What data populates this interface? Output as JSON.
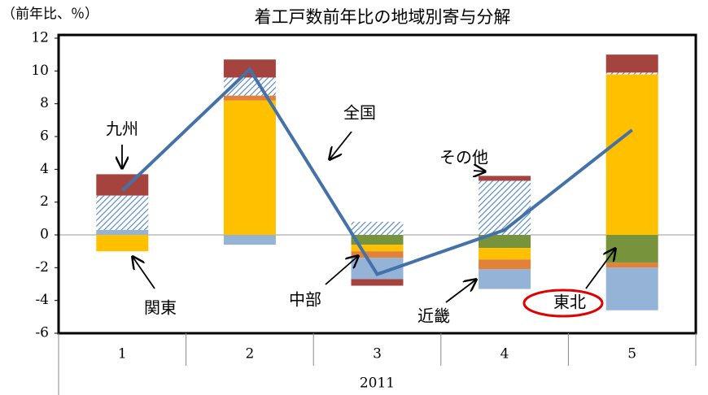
{
  "chart_data": {
    "type": "stacked_bar_line",
    "title": "着工戸数前年比の地域別寄与分解",
    "y_axis_label": "（前年比、％）",
    "categories": [
      "1",
      "2",
      "3",
      "4",
      "5"
    ],
    "group_label": "2011",
    "ylim": [
      -6,
      12
    ],
    "yticks": [
      -6,
      -4,
      -2,
      0,
      2,
      4,
      6,
      8,
      10,
      12
    ],
    "series": [
      {
        "name": "東北",
        "color": "#77933c",
        "values": [
          0,
          0,
          -0.6,
          -0.8,
          -1.7
        ]
      },
      {
        "name": "関東",
        "color": "#ffc000",
        "values": [
          -1.0,
          8.2,
          -0.4,
          -0.7,
          9.8
        ]
      },
      {
        "name": "近畿",
        "color": "#e0823a",
        "values": [
          0,
          0.3,
          -0.4,
          -0.6,
          -0.3
        ]
      },
      {
        "name": "中部",
        "color": "#95b3d7",
        "values": [
          0.3,
          -0.6,
          -1.3,
          -1.2,
          -2.6
        ]
      },
      {
        "name": "その他",
        "color": "#4f81bd",
        "hatch": true,
        "values": [
          2.1,
          1.1,
          0.8,
          3.3,
          0.1
        ]
      },
      {
        "name": "九州",
        "color": "#a5443f",
        "values": [
          1.3,
          1.1,
          -0.4,
          0.3,
          1.1
        ]
      }
    ],
    "line": {
      "name": "全国",
      "color": "#4472a8",
      "values": [
        2.7,
        10.1,
        -2.4,
        0.3,
        6.4
      ]
    }
  }
}
